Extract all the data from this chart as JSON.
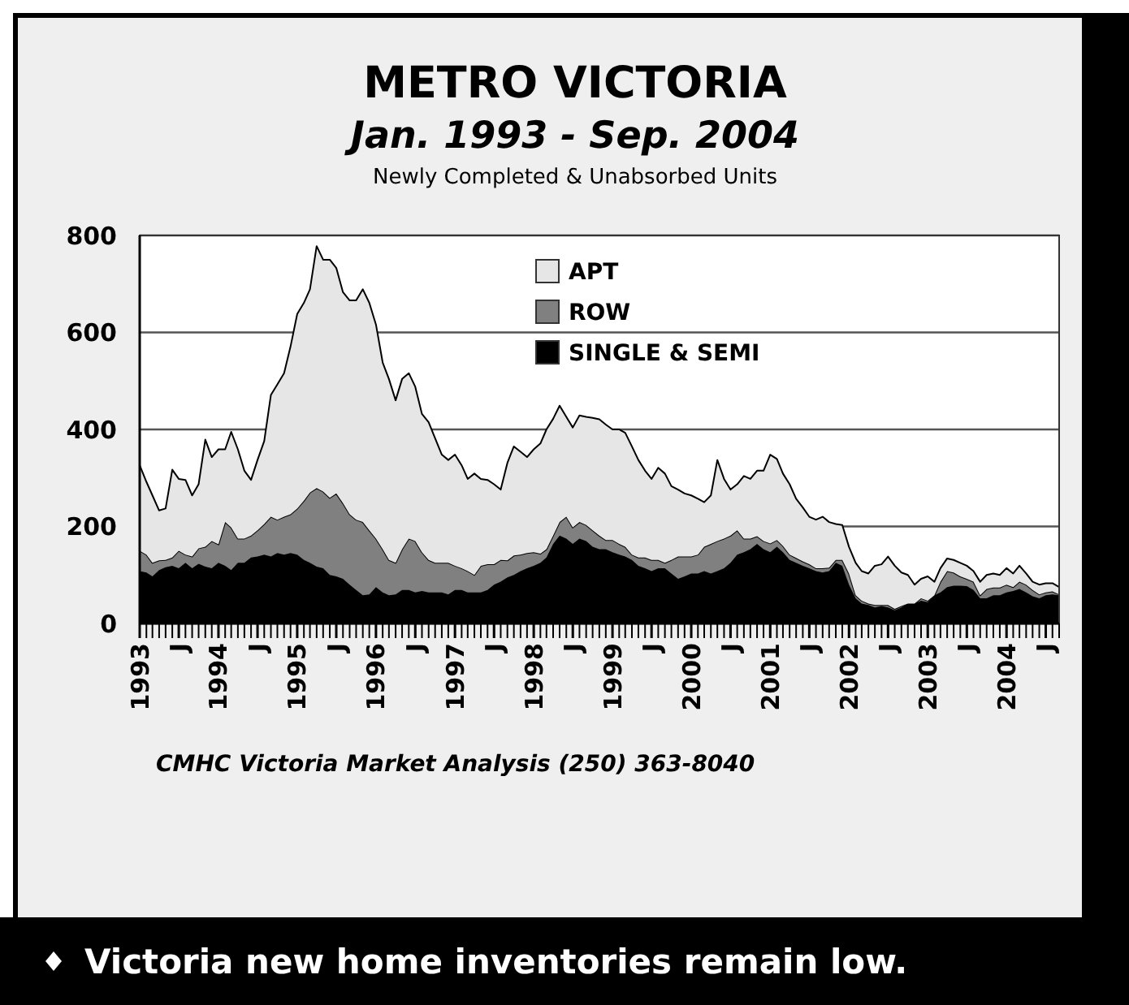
{
  "chart_data": {
    "type": "area",
    "stacked": true,
    "title": "METRO VICTORIA",
    "subtitle": "Jan. 1993 - Sep. 2004",
    "annotations": [
      "Newly Completed & Unabsorbed Units",
      "CMHC Victoria Market Analysis (250) 363-8040",
      "Victoria new home inventories remain low."
    ],
    "x": [
      "1993-01",
      "1993-02",
      "1993-03",
      "1993-04",
      "1993-05",
      "1993-06",
      "1993-07",
      "1993-08",
      "1993-09",
      "1993-10",
      "1993-11",
      "1993-12",
      "1994-01",
      "1994-02",
      "1994-03",
      "1994-04",
      "1994-05",
      "1994-06",
      "1994-07",
      "1994-08",
      "1994-09",
      "1994-10",
      "1994-11",
      "1994-12",
      "1995-01",
      "1995-02",
      "1995-03",
      "1995-04",
      "1995-05",
      "1995-06",
      "1995-07",
      "1995-08",
      "1995-09",
      "1995-10",
      "1995-11",
      "1995-12",
      "1996-01",
      "1996-02",
      "1996-03",
      "1996-04",
      "1996-05",
      "1996-06",
      "1996-07",
      "1996-08",
      "1996-09",
      "1996-10",
      "1996-11",
      "1996-12",
      "1997-01",
      "1997-02",
      "1997-03",
      "1997-04",
      "1997-05",
      "1997-06",
      "1997-07",
      "1997-08",
      "1997-09",
      "1997-10",
      "1997-11",
      "1997-12",
      "1998-01",
      "1998-02",
      "1998-03",
      "1998-04",
      "1998-05",
      "1998-06",
      "1998-07",
      "1998-08",
      "1998-09",
      "1998-10",
      "1998-11",
      "1998-12",
      "1999-01",
      "1999-02",
      "1999-03",
      "1999-04",
      "1999-05",
      "1999-06",
      "1999-07",
      "1999-08",
      "1999-09",
      "1999-10",
      "1999-11",
      "1999-12",
      "2000-01",
      "2000-02",
      "2000-03",
      "2000-04",
      "2000-05",
      "2000-06",
      "2000-07",
      "2000-08",
      "2000-09",
      "2000-10",
      "2000-11",
      "2000-12",
      "2001-01",
      "2001-02",
      "2001-03",
      "2001-04",
      "2001-05",
      "2001-06",
      "2001-07",
      "2001-08",
      "2001-09",
      "2001-10",
      "2001-11",
      "2001-12",
      "2002-01",
      "2002-02",
      "2002-03",
      "2002-04",
      "2002-05",
      "2002-06",
      "2002-07",
      "2002-08",
      "2002-09",
      "2002-10",
      "2002-11",
      "2002-12",
      "2003-01",
      "2003-02",
      "2003-03",
      "2003-04",
      "2003-05",
      "2003-06",
      "2003-07",
      "2003-08",
      "2003-09",
      "2003-10",
      "2003-11",
      "2003-12",
      "2004-01",
      "2004-02",
      "2004-03",
      "2004-04",
      "2004-05",
      "2004-06",
      "2004-07",
      "2004-08",
      "2004-09"
    ],
    "series": [
      {
        "name": "SINGLE & SEMI",
        "color": "#000000",
        "values": [
          108,
          105,
          97,
          110,
          116,
          119,
          114,
          125,
          114,
          123,
          117,
          114,
          125,
          119,
          110,
          125,
          125,
          136,
          138,
          142,
          138,
          145,
          142,
          145,
          142,
          131,
          125,
          117,
          114,
          100,
          97,
          92,
          80,
          69,
          58,
          60,
          75,
          64,
          58,
          60,
          69,
          69,
          64,
          67,
          64,
          64,
          64,
          60,
          69,
          69,
          64,
          64,
          64,
          69,
          80,
          86,
          95,
          100,
          108,
          114,
          119,
          125,
          136,
          164,
          181,
          175,
          164,
          175,
          170,
          158,
          153,
          153,
          147,
          142,
          138,
          131,
          119,
          114,
          108,
          114,
          114,
          103,
          92,
          97,
          103,
          103,
          108,
          103,
          108,
          114,
          125,
          142,
          147,
          153,
          164,
          153,
          147,
          158,
          147,
          131,
          125,
          119,
          114,
          108,
          105,
          108,
          125,
          119,
          80,
          52,
          41,
          38,
          33,
          36,
          33,
          27,
          33,
          41,
          41,
          47,
          44,
          58,
          64,
          75,
          78,
          78,
          77,
          69,
          52,
          52,
          58,
          58,
          64,
          67,
          71,
          64,
          56,
          52,
          58,
          60,
          58
        ]
      },
      {
        "name": "ROW",
        "color": "#808080",
        "values": [
          42,
          37,
          28,
          20,
          15,
          17,
          36,
          17,
          24,
          32,
          41,
          56,
          38,
          90,
          88,
          50,
          50,
          45,
          54,
          63,
          82,
          69,
          78,
          80,
          95,
          122,
          145,
          162,
          158,
          159,
          171,
          156,
          145,
          145,
          151,
          132,
          100,
          89,
          73,
          65,
          84,
          106,
          106,
          80,
          67,
          61,
          61,
          65,
          50,
          45,
          44,
          36,
          55,
          53,
          42,
          45,
          35,
          40,
          34,
          31,
          28,
          19,
          17,
          17,
          28,
          45,
          34,
          34,
          33,
          34,
          28,
          19,
          25,
          22,
          20,
          11,
          17,
          22,
          23,
          17,
          11,
          28,
          46,
          41,
          35,
          39,
          50,
          61,
          62,
          61,
          56,
          50,
          28,
          22,
          16,
          17,
          18,
          14,
          13,
          11,
          10,
          9,
          8,
          6,
          9,
          7,
          6,
          12,
          23,
          6,
          6,
          3,
          5,
          2,
          5,
          3,
          3,
          0,
          0,
          5,
          3,
          0,
          22,
          33,
          27,
          19,
          15,
          17,
          6,
          19,
          16,
          16,
          16,
          8,
          15,
          16,
          13,
          8,
          6,
          6,
          2
        ]
      },
      {
        "name": "APT",
        "color": "#e6e6e6",
        "values": [
          176,
          150,
          139,
          103,
          106,
          181,
          148,
          154,
          126,
          132,
          221,
          173,
          196,
          150,
          197,
          184,
          140,
          115,
          145,
          171,
          251,
          279,
          296,
          346,
          401,
          408,
          419,
          499,
          478,
          491,
          465,
          435,
          441,
          452,
          480,
          469,
          441,
          385,
          373,
          335,
          351,
          341,
          318,
          285,
          284,
          257,
          223,
          212,
          229,
          212,
          190,
          209,
          179,
          174,
          165,
          145,
          201,
          225,
          212,
          198,
          212,
          227,
          247,
          241,
          240,
          206,
          206,
          220,
          223,
          232,
          240,
          238,
          228,
          236,
          235,
          223,
          201,
          179,
          167,
          190,
          184,
          152,
          138,
          130,
          126,
          115,
          92,
          100,
          167,
          123,
          95,
          95,
          129,
          123,
          135,
          145,
          183,
          167,
          149,
          145,
          122,
          111,
          98,
          100,
          106,
          94,
          74,
          72,
          55,
          67,
          61,
          62,
          81,
          84,
          100,
          89,
          69,
          59,
          39,
          40,
          50,
          28,
          28,
          26,
          26,
          28,
          27,
          22,
          28,
          29,
          29,
          26,
          34,
          28,
          33,
          23,
          17,
          20,
          19,
          17,
          15
        ]
      }
    ],
    "xlim": [
      "1993-01",
      "2004-09"
    ],
    "xticks": [
      {
        "value": "1993-01",
        "label": "1993"
      },
      {
        "value": "1993-07",
        "label": "J"
      },
      {
        "value": "1994-01",
        "label": "1994"
      },
      {
        "value": "1994-07",
        "label": "J"
      },
      {
        "value": "1995-01",
        "label": "1995"
      },
      {
        "value": "1995-07",
        "label": "J"
      },
      {
        "value": "1996-01",
        "label": "1996"
      },
      {
        "value": "1996-07",
        "label": "J"
      },
      {
        "value": "1997-01",
        "label": "1997"
      },
      {
        "value": "1997-07",
        "label": "J"
      },
      {
        "value": "1998-01",
        "label": "1998"
      },
      {
        "value": "1998-07",
        "label": "J"
      },
      {
        "value": "1999-01",
        "label": "1999"
      },
      {
        "value": "1999-07",
        "label": "J"
      },
      {
        "value": "2000-01",
        "label": "2000"
      },
      {
        "value": "2000-07",
        "label": "J"
      },
      {
        "value": "2001-01",
        "label": "2001"
      },
      {
        "value": "2001-07",
        "label": "J"
      },
      {
        "value": "2002-01",
        "label": "2002"
      },
      {
        "value": "2002-07",
        "label": "J"
      },
      {
        "value": "2003-01",
        "label": "2003"
      },
      {
        "value": "2003-07",
        "label": "J"
      },
      {
        "value": "2004-01",
        "label": "2004"
      },
      {
        "value": "2004-07",
        "label": "J"
      }
    ],
    "ylim": [
      0,
      800
    ],
    "yticks": [
      0,
      200,
      400,
      600,
      800
    ],
    "grid": "y",
    "legend": "top"
  }
}
